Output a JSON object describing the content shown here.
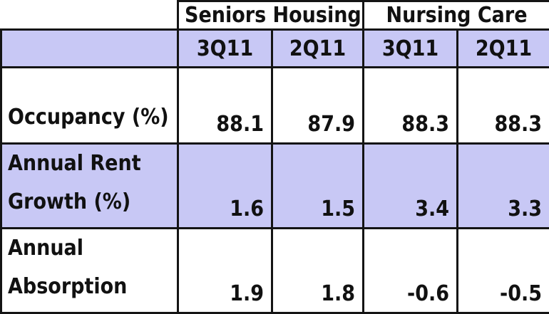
{
  "groups": [
    "Seniors Housing",
    "Nursing Care"
  ],
  "periods": [
    "3Q11",
    "2Q11",
    "3Q11",
    "2Q11"
  ],
  "rows": [
    {
      "label": "Occupancy (%)",
      "values": [
        "88.1",
        "87.9",
        "88.3",
        "88.3"
      ]
    },
    {
      "label": "Annual Rent Growth (%)",
      "values": [
        "1.6",
        "1.5",
        "3.4",
        "3.3"
      ]
    },
    {
      "label": "Annual Absorption",
      "values": [
        "1.9",
        "1.8",
        "-0.6",
        "-0.5"
      ]
    }
  ],
  "colors": {
    "header_fill": "#c8c8f5",
    "border": "#141414",
    "text": "#111111",
    "background": "#ffffff"
  }
}
